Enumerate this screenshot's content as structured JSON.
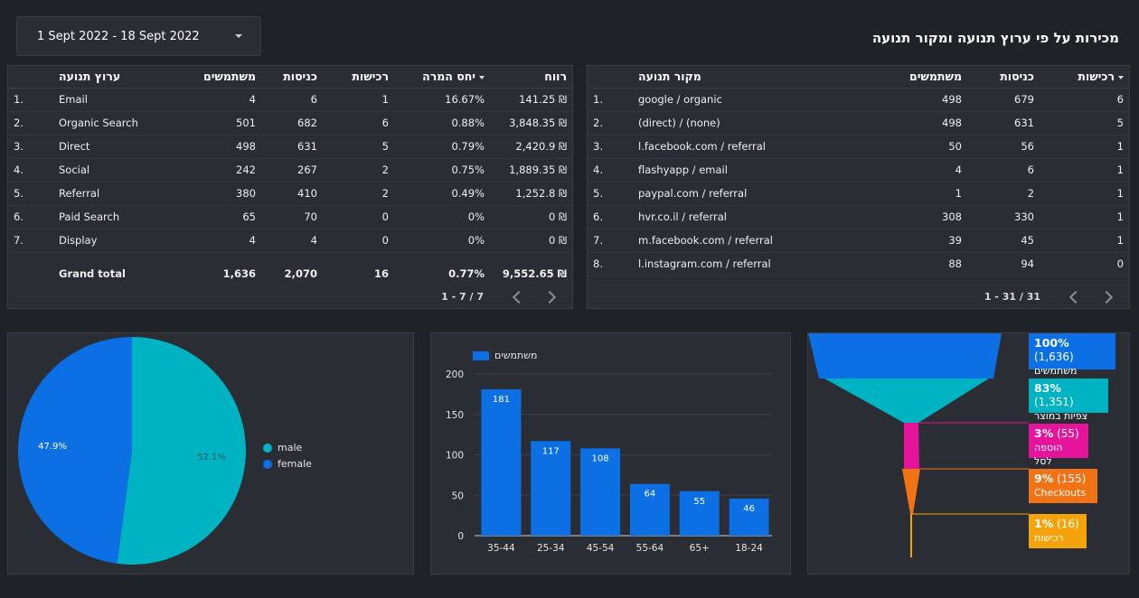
{
  "date_range": {
    "label": "1 Sept 2022 - 18 Sept 2022"
  },
  "page_title": "מכירות על פי ערוץ תנועה ומקור תנועה",
  "channel_table": {
    "headers": {
      "channel": "ערוץ תנועה",
      "users": "משתמשים",
      "sessions": "כניסות",
      "purchases": "רכישות",
      "conversion": "יחס המרה",
      "profit": "רווח"
    },
    "rows": [
      {
        "idx": "1.",
        "channel": "Email",
        "users": "4",
        "sessions": "6",
        "purchases": "1",
        "conversion": "16.67%",
        "profit": "141.25 ₪"
      },
      {
        "idx": "2.",
        "channel": "Organic Search",
        "users": "501",
        "sessions": "682",
        "purchases": "6",
        "conversion": "0.88%",
        "profit": "3,848.35 ₪"
      },
      {
        "idx": "3.",
        "channel": "Direct",
        "users": "498",
        "sessions": "631",
        "purchases": "5",
        "conversion": "0.79%",
        "profit": "2,420.9 ₪"
      },
      {
        "idx": "4.",
        "channel": "Social",
        "users": "242",
        "sessions": "267",
        "purchases": "2",
        "conversion": "0.75%",
        "profit": "1,889.35 ₪"
      },
      {
        "idx": "5.",
        "channel": "Referral",
        "users": "380",
        "sessions": "410",
        "purchases": "2",
        "conversion": "0.49%",
        "profit": "1,252.8 ₪"
      },
      {
        "idx": "6.",
        "channel": "Paid Search",
        "users": "65",
        "sessions": "70",
        "purchases": "0",
        "conversion": "0%",
        "profit": "0 ₪"
      },
      {
        "idx": "7.",
        "channel": "Display",
        "users": "4",
        "sessions": "4",
        "purchases": "0",
        "conversion": "0%",
        "profit": "0 ₪"
      }
    ],
    "total": {
      "label": "Grand total",
      "users": "1,636",
      "sessions": "2,070",
      "purchases": "16",
      "conversion": "0.77%",
      "profit": "9,552.65 ₪"
    },
    "pager": "1 - 7 / 7"
  },
  "source_table": {
    "headers": {
      "source": "מקור תנועה",
      "users": "משתמשים",
      "sessions": "כניסות",
      "purchases": "רכישות"
    },
    "rows": [
      {
        "idx": "1.",
        "source": "google / organic",
        "users": "498",
        "sessions": "679",
        "purchases": "6"
      },
      {
        "idx": "2.",
        "source": "(direct) / (none)",
        "users": "498",
        "sessions": "631",
        "purchases": "5"
      },
      {
        "idx": "3.",
        "source": "l.facebook.com / referral",
        "users": "50",
        "sessions": "56",
        "purchases": "1"
      },
      {
        "idx": "4.",
        "source": "flashyapp / email",
        "users": "4",
        "sessions": "6",
        "purchases": "1"
      },
      {
        "idx": "5.",
        "source": "paypal.com / referral",
        "users": "1",
        "sessions": "2",
        "purchases": "1"
      },
      {
        "idx": "6.",
        "source": "hvr.co.il / referral",
        "users": "308",
        "sessions": "330",
        "purchases": "1"
      },
      {
        "idx": "7.",
        "source": "m.facebook.com / referral",
        "users": "39",
        "sessions": "45",
        "purchases": "1"
      },
      {
        "idx": "8.",
        "source": "l.instagram.com / referral",
        "users": "88",
        "sessions": "94",
        "purchases": "0"
      }
    ],
    "pager": "1 - 31 / 31"
  },
  "chart_data": [
    {
      "type": "pie",
      "categories": [
        "male",
        "female"
      ],
      "values": [
        52.1,
        47.9
      ],
      "data_labels": [
        "52.1%",
        "47.9%"
      ],
      "colors": [
        "#00b3c3",
        "#0c6fe3"
      ],
      "legend_position": "right"
    },
    {
      "type": "bar",
      "categories": [
        "35-44",
        "25-34",
        "45-54",
        "55-64",
        "65+",
        "18-24"
      ],
      "series": [
        {
          "name": "משתמשים",
          "values": [
            181,
            117,
            108,
            64,
            55,
            46
          ]
        }
      ],
      "y_ticks": [
        "0",
        "50",
        "100",
        "150",
        "200"
      ],
      "ylim": [
        0,
        200
      ],
      "grid": true,
      "color": "#0c6fe3",
      "legend_position": "top-left"
    }
  ],
  "funnel": {
    "stages": [
      {
        "pct": "100%",
        "count": "(1,636)",
        "label": "משתמשים",
        "color": "#0c6fe3",
        "value": 100
      },
      {
        "pct": "83%",
        "count": "(1,351)",
        "label": "צפיות במוצר",
        "color": "#00b3c3",
        "value": 83
      },
      {
        "pct": "3%",
        "count": "(55)",
        "label": "הוספה לסל",
        "color": "#e5149b",
        "value": 3
      },
      {
        "pct": "9%",
        "count": "(155)",
        "label": "Checkouts",
        "color": "#f27216",
        "value": 9
      },
      {
        "pct": "1%",
        "count": "(16)",
        "label": "רכישות",
        "color": "#f5a30a",
        "value": 1
      }
    ]
  }
}
